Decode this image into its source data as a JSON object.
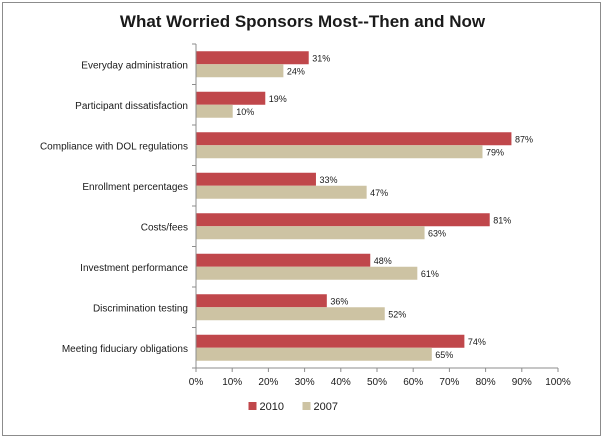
{
  "chart_data": {
    "type": "bar",
    "orientation": "horizontal",
    "title": "What Worried Sponsors Most--Then and Now",
    "categories": [
      "Everyday administration",
      "Participant dissatisfaction",
      "Compliance with DOL regulations",
      "Enrollment percentages",
      "Costs/fees",
      "Investment performance",
      "Discrimination testing",
      "Meeting fiduciary obligations"
    ],
    "series": [
      {
        "name": "2010",
        "color": "#c0474b",
        "values": [
          31,
          19,
          87,
          33,
          81,
          48,
          36,
          74
        ]
      },
      {
        "name": "2007",
        "color": "#cdc3a3",
        "values": [
          24,
          10,
          79,
          47,
          63,
          61,
          52,
          65
        ]
      }
    ],
    "value_suffix": "%",
    "xlim": [
      0,
      100
    ],
    "xticks": [
      0,
      10,
      20,
      30,
      40,
      50,
      60,
      70,
      80,
      90,
      100
    ],
    "xtick_labels": [
      "0%",
      "10%",
      "20%",
      "30%",
      "40%",
      "50%",
      "60%",
      "70%",
      "80%",
      "90%",
      "100%"
    ],
    "grid": false,
    "legend_position": "bottom"
  }
}
